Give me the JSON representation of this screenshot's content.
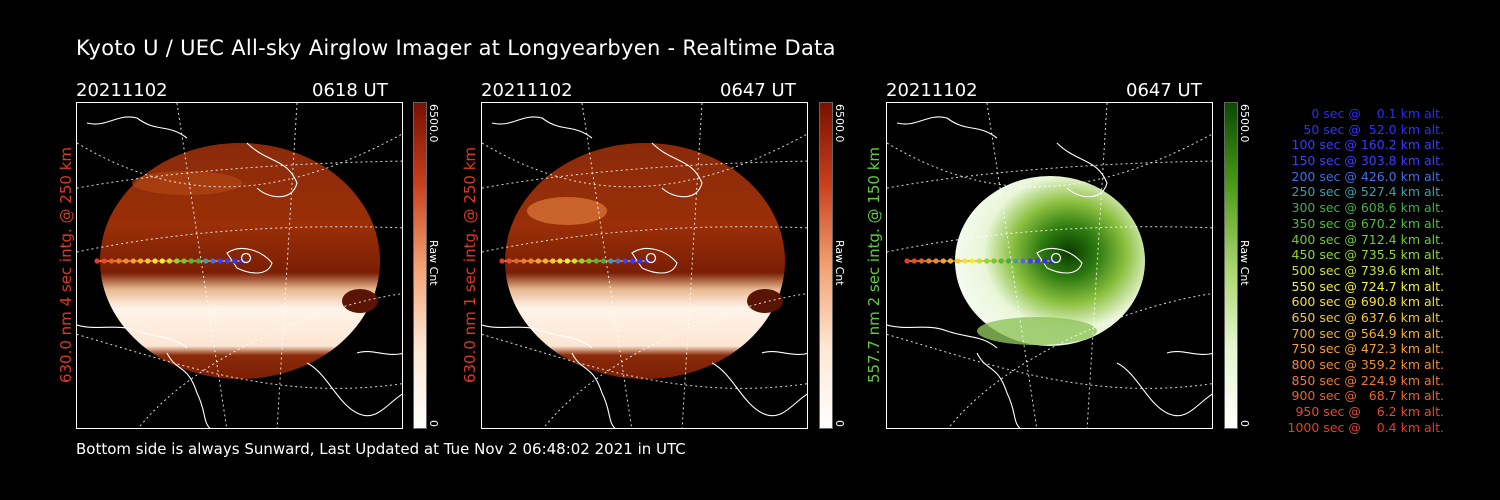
{
  "title": "Kyoto U / UEC All-sky Airglow Imager at Longyearbyen - Realtime Data",
  "footer": "Bottom side is always Sunward, Last Updated at Tue Nov  2 06:48:02 2021 in UTC",
  "panels": [
    {
      "date": "20211102",
      "time": "0618 UT",
      "label": "630.0 nm 4 sec intg. @ 250 km",
      "label_color": "#e0391f",
      "colorbar_max": "6500.0",
      "colorbar_unit": "Raw Cnt",
      "colorbar_min": "0",
      "scheme": "red"
    },
    {
      "date": "20211102",
      "time": "0647 UT",
      "label": "630.0 nm 1 sec intg. @ 250 km",
      "label_color": "#e0391f",
      "colorbar_max": "6500.0",
      "colorbar_unit": "Raw Cnt",
      "colorbar_min": "0",
      "scheme": "red"
    },
    {
      "date": "20211102",
      "time": "0647 UT",
      "label": "557.7 nm 2 sec intg. @ 150 km",
      "label_color": "#5fcf3a",
      "colorbar_max": "6500.0",
      "colorbar_unit": "Raw Cnt",
      "colorbar_min": "0",
      "scheme": "green"
    }
  ],
  "legend": [
    {
      "text": "   0 sec @    0.1 km alt.",
      "color": "#2a2aff"
    },
    {
      "text": "  50 sec @  52.0 km alt.",
      "color": "#3030ff"
    },
    {
      "text": " 100 sec @ 160.2 km alt.",
      "color": "#3a3aff"
    },
    {
      "text": " 150 sec @ 303.8 km alt.",
      "color": "#3d3dff"
    },
    {
      "text": " 200 sec @ 426.0 km alt.",
      "color": "#3f6fe8"
    },
    {
      "text": " 250 sec @ 527.4 km alt.",
      "color": "#3aa0b0"
    },
    {
      "text": " 300 sec @ 608.6 km alt.",
      "color": "#3fb04a"
    },
    {
      "text": " 350 sec @ 670.2 km alt.",
      "color": "#4ac030"
    },
    {
      "text": " 400 sec @ 712.4 km alt.",
      "color": "#6ccc2c"
    },
    {
      "text": " 450 sec @ 735.5 km alt.",
      "color": "#8ed82c"
    },
    {
      "text": " 500 sec @ 739.6 km alt.",
      "color": "#c8e02e"
    },
    {
      "text": " 550 sec @ 724.7 km alt.",
      "color": "#f0f030"
    },
    {
      "text": " 600 sec @ 690.8 km alt.",
      "color": "#f6e030"
    },
    {
      "text": " 650 sec @ 637.6 km alt.",
      "color": "#f5c830"
    },
    {
      "text": " 700 sec @ 564.9 km alt.",
      "color": "#f5b030"
    },
    {
      "text": " 750 sec @ 472.3 km alt.",
      "color": "#f5a030"
    },
    {
      "text": " 800 sec @ 359.2 km alt.",
      "color": "#f08a30"
    },
    {
      "text": " 850 sec @ 224.9 km alt.",
      "color": "#ec7a30"
    },
    {
      "text": " 900 sec @   68.7 km alt.",
      "color": "#e86030"
    },
    {
      "text": " 950 sec @    6.2 km alt.",
      "color": "#e64a2c"
    },
    {
      "text": "1000 sec @    0.4 km alt.",
      "color": "#e83a28"
    }
  ]
}
